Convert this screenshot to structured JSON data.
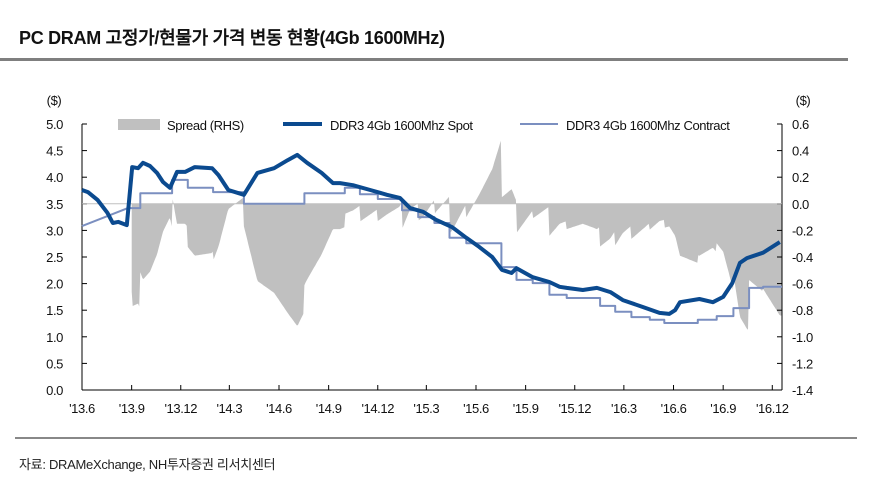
{
  "title": "PC DRAM 고정가/현물가 가격 변동 현황(4Gb 1600MHz)",
  "source": "자료: DRAMeXchange, NH투자증권 리서치센터",
  "chart_data": {
    "type": "line",
    "left_unit": "($)",
    "right_unit": "($)",
    "xlim": [
      "2013-06-01",
      "2016-12-19"
    ],
    "x_ticks": [
      {
        "date": "2013-06-01",
        "label": "'13.6"
      },
      {
        "date": "2013-09-01",
        "label": "'13.9"
      },
      {
        "date": "2013-12-01",
        "label": "'13.12"
      },
      {
        "date": "2014-03-01",
        "label": "'14.3"
      },
      {
        "date": "2014-06-01",
        "label": "'14.6"
      },
      {
        "date": "2014-09-01",
        "label": "'14.9"
      },
      {
        "date": "2014-12-01",
        "label": "'14.12"
      },
      {
        "date": "2015-03-01",
        "label": "'15.3"
      },
      {
        "date": "2015-06-01",
        "label": "'15.6"
      },
      {
        "date": "2015-09-01",
        "label": "'15.9"
      },
      {
        "date": "2015-12-01",
        "label": "'15.12"
      },
      {
        "date": "2016-03-01",
        "label": "'16.3"
      },
      {
        "date": "2016-06-01",
        "label": "'16.6"
      },
      {
        "date": "2016-09-01",
        "label": "'16.9"
      },
      {
        "date": "2016-12-01",
        "label": "'16.12"
      }
    ],
    "y_left": {
      "lim": [
        0,
        5
      ],
      "ticks": [
        "0.0",
        "0.5",
        "1.0",
        "1.5",
        "2.0",
        "2.5",
        "3.0",
        "3.5",
        "4.0",
        "4.5",
        "5.0"
      ]
    },
    "y_right": {
      "lim": [
        -1.4,
        0.6
      ],
      "ticks": [
        "-1.4",
        "-1.2",
        "-1.0",
        "-0.8",
        "-0.6",
        "-0.4",
        "-0.2",
        "0.0",
        "0.2",
        "0.4",
        "0.6"
      ]
    },
    "legend_position": "top",
    "series": [
      {
        "name": "Spread (RHS)",
        "kind": "area",
        "axis": "right",
        "color": "#c0c0c0"
      },
      {
        "name": "DDR3 4Gb 1600Mhz Spot",
        "kind": "line",
        "axis": "left",
        "color": "#0b4a8f",
        "x": [
          "2013-06-01",
          "2013-06-12",
          "2013-06-30",
          "2013-07-18",
          "2013-07-28",
          "2013-08-07",
          "2013-08-23",
          "2013-09-02",
          "2013-09-13",
          "2013-09-22",
          "2013-10-05",
          "2013-10-18",
          "2013-10-29",
          "2013-11-11",
          "2013-11-24",
          "2013-12-09",
          "2013-12-27",
          "2014-01-28",
          "2014-02-09",
          "2014-02-27",
          "2014-03-28",
          "2014-04-22",
          "2014-05-23",
          "2014-06-17",
          "2014-07-05",
          "2014-07-23",
          "2014-08-19",
          "2014-09-09",
          "2014-09-22",
          "2014-10-16",
          "2014-11-17",
          "2014-12-18",
          "2015-01-11",
          "2015-01-30",
          "2015-02-23",
          "2015-03-19",
          "2015-04-18",
          "2015-05-14",
          "2015-06-07",
          "2015-07-01",
          "2015-07-19",
          "2015-08-06",
          "2015-08-15",
          "2015-09-14",
          "2015-10-15",
          "2015-11-03",
          "2015-11-16",
          "2015-12-16",
          "2016-01-11",
          "2016-02-05",
          "2016-02-28",
          "2016-04-05",
          "2016-05-06",
          "2016-05-24",
          "2016-06-04",
          "2016-06-13",
          "2016-07-19",
          "2016-08-13",
          "2016-09-01",
          "2016-09-18",
          "2016-10-02",
          "2016-10-15",
          "2016-11-14",
          "2016-12-15"
        ],
        "values": [
          3.76,
          3.72,
          3.57,
          3.33,
          3.14,
          3.16,
          3.1,
          4.19,
          4.17,
          4.27,
          4.21,
          4.08,
          3.91,
          3.8,
          4.1,
          4.1,
          4.19,
          4.17,
          4.04,
          3.76,
          3.67,
          4.08,
          4.17,
          4.32,
          4.42,
          4.27,
          4.08,
          3.89,
          3.89,
          3.85,
          3.76,
          3.67,
          3.61,
          3.42,
          3.35,
          3.2,
          3.06,
          2.86,
          2.69,
          2.5,
          2.26,
          2.2,
          2.29,
          2.12,
          2.03,
          1.94,
          1.92,
          1.88,
          1.92,
          1.84,
          1.69,
          1.56,
          1.45,
          1.43,
          1.5,
          1.65,
          1.71,
          1.65,
          1.75,
          2.01,
          2.39,
          2.48,
          2.58,
          2.78
        ]
      },
      {
        "name": "DDR3 4Gb 1600Mhz Contract",
        "kind": "line",
        "axis": "left",
        "color": "#7b8fc0",
        "x": [
          "2013-06-01",
          "2013-08-25",
          "2013-09-17",
          "2013-09-17",
          "2013-11-15",
          "2013-11-15",
          "2013-12-14",
          "2013-12-14",
          "2014-01-30",
          "2014-01-30",
          "2014-03-28",
          "2014-03-28",
          "2014-07-18",
          "2014-07-18",
          "2014-10-01",
          "2014-10-01",
          "2014-10-29",
          "2014-10-29",
          "2014-12-01",
          "2014-12-01",
          "2015-01-15",
          "2015-01-15",
          "2015-02-14",
          "2015-02-14",
          "2015-03-16",
          "2015-03-16",
          "2015-04-13",
          "2015-04-13",
          "2015-05-14",
          "2015-05-14",
          "2015-07-18",
          "2015-07-18",
          "2015-08-15",
          "2015-08-15",
          "2015-09-14",
          "2015-09-14",
          "2015-10-15",
          "2015-10-15",
          "2015-11-16",
          "2015-11-16",
          "2016-01-17",
          "2016-01-17",
          "2016-02-14",
          "2016-02-14",
          "2016-03-15",
          "2016-03-15",
          "2016-04-18",
          "2016-04-18",
          "2016-05-15",
          "2016-05-15",
          "2016-07-16",
          "2016-07-16",
          "2016-08-20",
          "2016-08-20",
          "2016-09-20",
          "2016-09-20",
          "2016-10-19",
          "2016-10-19",
          "2016-11-14",
          "2016-11-14",
          "2016-12-19"
        ],
        "values": [
          3.08,
          3.42,
          3.42,
          3.7,
          3.7,
          3.95,
          3.95,
          3.8,
          3.8,
          3.72,
          3.72,
          3.5,
          3.5,
          3.7,
          3.7,
          3.8,
          3.8,
          3.68,
          3.68,
          3.59,
          3.59,
          3.38,
          3.38,
          3.25,
          3.25,
          3.14,
          3.14,
          2.86,
          2.86,
          2.76,
          2.76,
          2.31,
          2.31,
          2.07,
          2.07,
          2.01,
          2.01,
          1.79,
          1.79,
          1.73,
          1.73,
          1.58,
          1.58,
          1.47,
          1.47,
          1.37,
          1.37,
          1.32,
          1.32,
          1.26,
          1.26,
          1.32,
          1.32,
          1.39,
          1.39,
          1.54,
          1.54,
          1.92,
          1.92,
          1.94,
          1.94
        ]
      }
    ]
  }
}
